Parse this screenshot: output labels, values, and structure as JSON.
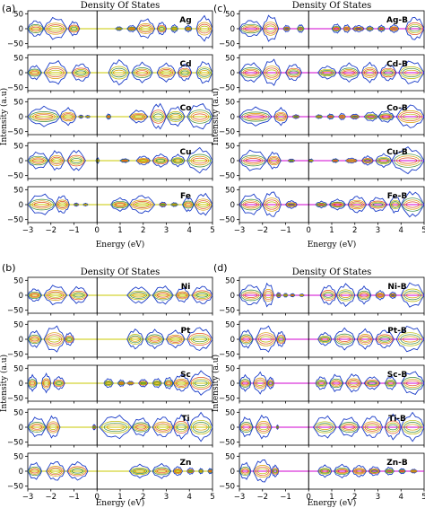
{
  "chart_data": [
    {
      "type": "area",
      "tag": "(a)",
      "title": "Density Of States",
      "xlabel": "Energy (eV)",
      "ylabel": "Intensity (a.u)",
      "xlim": [
        -3,
        5
      ],
      "ylim": [
        -60,
        60
      ],
      "xticks": [
        "−3",
        "−2",
        "−1",
        "0",
        "1",
        "2",
        "3",
        "4",
        "5"
      ],
      "yticks": [
        "50",
        "0",
        "−50"
      ],
      "fermi_level": 0,
      "baseline_color": "#c8c800",
      "envelope_color": "#1a3cc8",
      "series": [
        {
          "name": "Ag",
          "lobes": [
            [
              -3.0,
              -2.3,
              25
            ],
            [
              -2.3,
              -1.3,
              34
            ],
            [
              -1.25,
              -0.75,
              22
            ],
            [
              0.8,
              1.1,
              6
            ],
            [
              1.3,
              1.7,
              10
            ],
            [
              1.7,
              2.5,
              30
            ],
            [
              2.6,
              3.0,
              20
            ],
            [
              3.2,
              3.5,
              12
            ],
            [
              3.8,
              4.1,
              10
            ],
            [
              4.3,
              5.0,
              38
            ]
          ]
        },
        {
          "name": "Cd",
          "lobes": [
            [
              -3.0,
              -2.4,
              22
            ],
            [
              -2.3,
              -1.3,
              36
            ],
            [
              -1.1,
              -0.3,
              28
            ],
            [
              0.5,
              1.4,
              38
            ],
            [
              1.5,
              2.4,
              30
            ],
            [
              2.6,
              3.4,
              28
            ],
            [
              3.5,
              4.1,
              26
            ],
            [
              4.3,
              5.0,
              34
            ]
          ]
        },
        {
          "name": "Co",
          "lobes": [
            [
              -3.0,
              -1.6,
              30
            ],
            [
              -1.6,
              -0.9,
              26
            ],
            [
              -0.8,
              -0.6,
              5
            ],
            [
              -0.5,
              -0.3,
              4
            ],
            [
              0.4,
              0.6,
              8
            ],
            [
              1.4,
              2.2,
              20
            ],
            [
              2.3,
              3.0,
              40
            ],
            [
              3.0,
              3.8,
              30
            ],
            [
              3.9,
              5.0,
              40
            ]
          ]
        },
        {
          "name": "Cu",
          "lobes": [
            [
              -3.0,
              -2.1,
              26
            ],
            [
              -2.1,
              -1.4,
              30
            ],
            [
              -1.3,
              -0.5,
              32
            ],
            [
              -0.05,
              0.1,
              8
            ],
            [
              1.0,
              1.4,
              6
            ],
            [
              1.7,
              2.3,
              14
            ],
            [
              2.4,
              3.1,
              20
            ],
            [
              3.2,
              3.8,
              18
            ],
            [
              3.9,
              5.0,
              38
            ]
          ]
        },
        {
          "name": "Fe",
          "lobes": [
            [
              -3.0,
              -1.8,
              32
            ],
            [
              -1.8,
              -1.2,
              28
            ],
            [
              -1.0,
              -0.8,
              5
            ],
            [
              -0.6,
              -0.4,
              4
            ],
            [
              0.6,
              1.4,
              20
            ],
            [
              1.4,
              2.5,
              28
            ],
            [
              2.7,
              3.0,
              8
            ],
            [
              3.2,
              3.5,
              6
            ],
            [
              3.7,
              4.2,
              22
            ],
            [
              4.2,
              5.0,
              34
            ]
          ]
        }
      ]
    },
    {
      "type": "area",
      "tag": "(c)",
      "title": "Density Of States",
      "xlabel": "Energy (eV)",
      "ylabel": "Intensity (a.u)",
      "xlim": [
        -3,
        5
      ],
      "ylim": [
        -60,
        60
      ],
      "xticks": [
        "−3",
        "−2",
        "−1",
        "0",
        "1",
        "2",
        "3",
        "4",
        "5"
      ],
      "yticks": [
        "50",
        "0",
        "−50"
      ],
      "fermi_level": 0,
      "baseline_color": "#d000d0",
      "envelope_color": "#1a3cc8",
      "series": [
        {
          "name": "Ag-B",
          "lobes": [
            [
              -3.0,
              -2.0,
              26
            ],
            [
              -2.0,
              -1.3,
              40
            ],
            [
              -1.1,
              -0.8,
              10
            ],
            [
              -0.5,
              -0.2,
              12
            ],
            [
              1.0,
              1.4,
              14
            ],
            [
              1.5,
              1.8,
              12
            ],
            [
              1.9,
              2.4,
              10
            ],
            [
              2.5,
              2.8,
              8
            ],
            [
              3.0,
              3.3,
              10
            ],
            [
              3.5,
              3.9,
              12
            ],
            [
              4.2,
              5.0,
              36
            ]
          ]
        },
        {
          "name": "Cd-B",
          "lobes": [
            [
              -3.0,
              -2.0,
              30
            ],
            [
              -2.0,
              -1.2,
              40
            ],
            [
              -1.0,
              -0.3,
              26
            ],
            [
              0.4,
              1.2,
              20
            ],
            [
              1.3,
              2.2,
              28
            ],
            [
              2.3,
              3.0,
              30
            ],
            [
              3.1,
              3.8,
              26
            ],
            [
              3.9,
              5.0,
              36
            ]
          ]
        },
        {
          "name": "Co-B",
          "lobes": [
            [
              -3.0,
              -1.6,
              28
            ],
            [
              -1.5,
              -0.9,
              26
            ],
            [
              -0.7,
              -0.4,
              6
            ],
            [
              0.3,
              0.6,
              6
            ],
            [
              0.8,
              1.1,
              8
            ],
            [
              1.3,
              1.6,
              10
            ],
            [
              1.8,
              2.2,
              8
            ],
            [
              2.4,
              3.0,
              14
            ],
            [
              3.0,
              3.7,
              18
            ],
            [
              3.8,
              5.0,
              36
            ]
          ]
        },
        {
          "name": "Cu-B",
          "lobes": [
            [
              -3.0,
              -1.8,
              32
            ],
            [
              -1.8,
              -1.2,
              26
            ],
            [
              -0.9,
              -0.6,
              5
            ],
            [
              0.0,
              0.2,
              5
            ],
            [
              1.0,
              1.3,
              6
            ],
            [
              1.6,
              2.1,
              8
            ],
            [
              2.3,
              2.8,
              14
            ],
            [
              2.9,
              3.6,
              20
            ],
            [
              3.6,
              5.0,
              40
            ]
          ]
        },
        {
          "name": "Fe-B",
          "lobes": [
            [
              -3.0,
              -2.0,
              32
            ],
            [
              -2.0,
              -1.2,
              40
            ],
            [
              -1.0,
              -0.5,
              12
            ],
            [
              0.3,
              0.8,
              10
            ],
            [
              0.9,
              1.6,
              16
            ],
            [
              1.7,
              2.5,
              26
            ],
            [
              2.6,
              3.4,
              22
            ],
            [
              3.5,
              4.0,
              26
            ],
            [
              4.0,
              5.0,
              40
            ]
          ]
        }
      ]
    },
    {
      "type": "area",
      "tag": "(b)",
      "title": "Density Of States",
      "xlabel": "Energy (eV)",
      "ylabel": "Intensity (a.u)",
      "xlim": [
        -3,
        5
      ],
      "ylim": [
        -60,
        60
      ],
      "xticks": [
        "−3",
        "−2",
        "−1",
        "0",
        "1",
        "2",
        "3",
        "4",
        "5"
      ],
      "yticks": [
        "50",
        "0",
        "−50"
      ],
      "fermi_level": 0,
      "baseline_color": "#c8c800",
      "envelope_color": "#1a3cc8",
      "series": [
        {
          "name": "Ni",
          "lobes": [
            [
              -3.0,
              -2.4,
              20
            ],
            [
              -2.3,
              -1.3,
              30
            ],
            [
              -1.2,
              -0.4,
              26
            ],
            [
              1.3,
              2.3,
              26
            ],
            [
              2.4,
              3.3,
              28
            ],
            [
              3.4,
              4.0,
              22
            ],
            [
              4.1,
              5.0,
              28
            ]
          ]
        },
        {
          "name": "Pt",
          "lobes": [
            [
              -3.0,
              -2.4,
              26
            ],
            [
              -2.3,
              -1.4,
              40
            ],
            [
              -1.4,
              -1.0,
              20
            ],
            [
              1.3,
              2.0,
              30
            ],
            [
              2.1,
              2.9,
              28
            ],
            [
              3.0,
              3.8,
              26
            ],
            [
              3.9,
              5.0,
              36
            ]
          ]
        },
        {
          "name": "Sc",
          "lobes": [
            [
              -3.0,
              -2.6,
              24
            ],
            [
              -2.4,
              -2.0,
              28
            ],
            [
              -1.9,
              -1.4,
              20
            ],
            [
              0.3,
              0.7,
              14
            ],
            [
              0.9,
              1.2,
              10
            ],
            [
              1.3,
              1.6,
              6
            ],
            [
              1.8,
              2.2,
              12
            ],
            [
              2.4,
              2.8,
              14
            ],
            [
              2.9,
              3.3,
              18
            ],
            [
              3.3,
              4.0,
              26
            ],
            [
              4.0,
              5.0,
              36
            ]
          ]
        },
        {
          "name": "Ti",
          "lobes": [
            [
              -3.0,
              -2.2,
              30
            ],
            [
              -2.2,
              -1.6,
              34
            ],
            [
              -0.2,
              -0.05,
              8
            ],
            [
              0.1,
              1.5,
              36
            ],
            [
              1.5,
              2.3,
              28
            ],
            [
              2.4,
              3.3,
              32
            ],
            [
              3.3,
              4.0,
              36
            ],
            [
              4.0,
              5.0,
              42
            ]
          ]
        },
        {
          "name": "Zn",
          "lobes": [
            [
              -3.0,
              -2.4,
              26
            ],
            [
              -2.2,
              -1.4,
              30
            ],
            [
              -1.3,
              -0.4,
              28
            ],
            [
              1.4,
              2.3,
              20
            ],
            [
              2.4,
              3.2,
              22
            ],
            [
              3.3,
              3.7,
              14
            ],
            [
              3.9,
              4.2,
              10
            ],
            [
              4.4,
              4.6,
              8
            ],
            [
              4.8,
              5.0,
              8
            ]
          ]
        }
      ]
    },
    {
      "type": "area",
      "tag": "(d)",
      "title": "Density Of States",
      "xlabel": "Energy (eV)",
      "ylabel": "Intensity (a.u)",
      "xlim": [
        -3,
        5
      ],
      "ylim": [
        -60,
        60
      ],
      "xticks": [
        "−3",
        "−2",
        "−1",
        "0",
        "1",
        "2",
        "3",
        "4",
        "5"
      ],
      "yticks": [
        "50",
        "0",
        "−50"
      ],
      "fermi_level": 0,
      "baseline_color": "#d000d0",
      "envelope_color": "#1a3cc8",
      "series": [
        {
          "name": "Ni-B",
          "lobes": [
            [
              -3.0,
              -2.0,
              32
            ],
            [
              -2.0,
              -1.5,
              36
            ],
            [
              -1.4,
              -1.2,
              8
            ],
            [
              -1.1,
              -0.9,
              6
            ],
            [
              -0.8,
              -0.6,
              5
            ],
            [
              -0.4,
              -0.2,
              4
            ],
            [
              0.5,
              1.2,
              30
            ],
            [
              1.2,
              2.0,
              34
            ],
            [
              2.1,
              2.7,
              26
            ],
            [
              2.9,
              3.3,
              14
            ],
            [
              3.5,
              3.8,
              10
            ],
            [
              4.0,
              5.0,
              38
            ]
          ]
        },
        {
          "name": "Pt-B",
          "lobes": [
            [
              -3.0,
              -2.4,
              28
            ],
            [
              -2.3,
              -1.4,
              40
            ],
            [
              -1.4,
              -1.0,
              24
            ],
            [
              0.4,
              1.0,
              20
            ],
            [
              1.1,
              2.0,
              32
            ],
            [
              2.1,
              2.8,
              30
            ],
            [
              2.9,
              3.7,
              28
            ],
            [
              3.8,
              5.0,
              40
            ]
          ]
        },
        {
          "name": "Sc-B",
          "lobes": [
            [
              -3.0,
              -2.5,
              24
            ],
            [
              -2.4,
              -1.8,
              32
            ],
            [
              -1.8,
              -1.5,
              18
            ],
            [
              0.3,
              0.8,
              20
            ],
            [
              0.9,
              1.5,
              26
            ],
            [
              1.6,
              2.3,
              28
            ],
            [
              2.4,
              3.1,
              20
            ],
            [
              3.3,
              3.8,
              20
            ],
            [
              4.0,
              5.0,
              36
            ]
          ]
        },
        {
          "name": "Ti-B",
          "lobes": [
            [
              -3.0,
              -2.4,
              30
            ],
            [
              -2.3,
              -1.6,
              36
            ],
            [
              -1.4,
              -1.3,
              6
            ],
            [
              0.2,
              1.2,
              34
            ],
            [
              1.3,
              2.2,
              30
            ],
            [
              2.3,
              3.2,
              34
            ],
            [
              3.3,
              4.0,
              38
            ],
            [
              4.0,
              5.0,
              42
            ]
          ]
        },
        {
          "name": "Zn-B",
          "lobes": [
            [
              -3.0,
              -2.5,
              26
            ],
            [
              -2.4,
              -1.6,
              36
            ],
            [
              -1.6,
              -1.3,
              18
            ],
            [
              0.4,
              1.0,
              18
            ],
            [
              1.1,
              1.8,
              20
            ],
            [
              1.9,
              2.5,
              18
            ],
            [
              2.6,
              3.1,
              14
            ],
            [
              3.3,
              3.7,
              12
            ],
            [
              3.9,
              4.2,
              8
            ],
            [
              4.4,
              4.7,
              6
            ]
          ]
        }
      ]
    }
  ]
}
